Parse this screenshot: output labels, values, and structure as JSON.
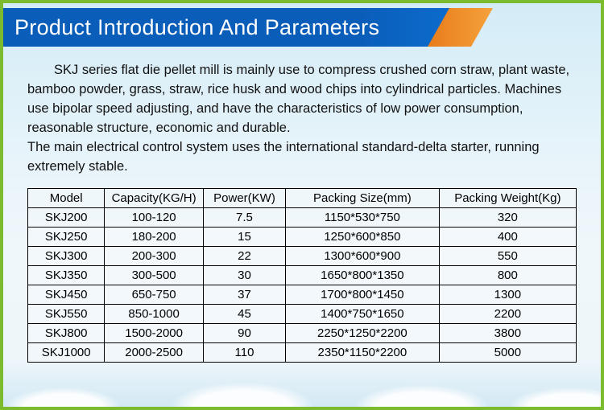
{
  "banner": {
    "title": "Product Introduction And Parameters"
  },
  "description": {
    "para1": "SKJ series flat die pellet mill is mainly use to compress crushed corn straw, plant waste, bamboo powder, grass, straw, rice husk and wood chips into cylindrical particles. Machines use bipolar speed adjusting, and have the characteristics of low power consumption, reasonable structure, economic and durable.",
    "para2": "The main electrical control system uses the international standard-delta starter, running extremely stable."
  },
  "table": {
    "columns": [
      "Model",
      "Capacity(KG/H)",
      "Power(KW)",
      "Packing Size(mm)",
      "Packing Weight(Kg)"
    ],
    "rows": [
      [
        "SKJ200",
        "100-120",
        "7.5",
        "1150*530*750",
        "320"
      ],
      [
        "SKJ250",
        "180-200",
        "15",
        "1250*600*850",
        "400"
      ],
      [
        "SKJ300",
        "200-300",
        "22",
        "1300*600*900",
        "550"
      ],
      [
        "SKJ350",
        "300-500",
        "30",
        "1650*800*1350",
        "800"
      ],
      [
        "SKJ450",
        "650-750",
        "37",
        "1700*800*1450",
        "1300"
      ],
      [
        "SKJ550",
        "850-1000",
        "45",
        "1400*750*1650",
        "2200"
      ],
      [
        "SKJ800",
        "1500-2000",
        "90",
        "2250*1250*2200",
        "3800"
      ],
      [
        "SKJ1000",
        "2000-2500",
        "110",
        "2350*1150*2200",
        "5000"
      ]
    ]
  },
  "styling": {
    "page_bg": "#7CBB2E",
    "sky_gradient": [
      "#d4ecf7",
      "#f0f7fb"
    ],
    "banner_blue": "#0a5db8",
    "banner_orange": [
      "#e67817",
      "#f5a23c"
    ],
    "title_fontsize": 27,
    "body_fontsize": 16.5,
    "table_fontsize": 15,
    "table_border_color": "#000000",
    "column_widths_pct": [
      14,
      18,
      15,
      28,
      25
    ]
  }
}
